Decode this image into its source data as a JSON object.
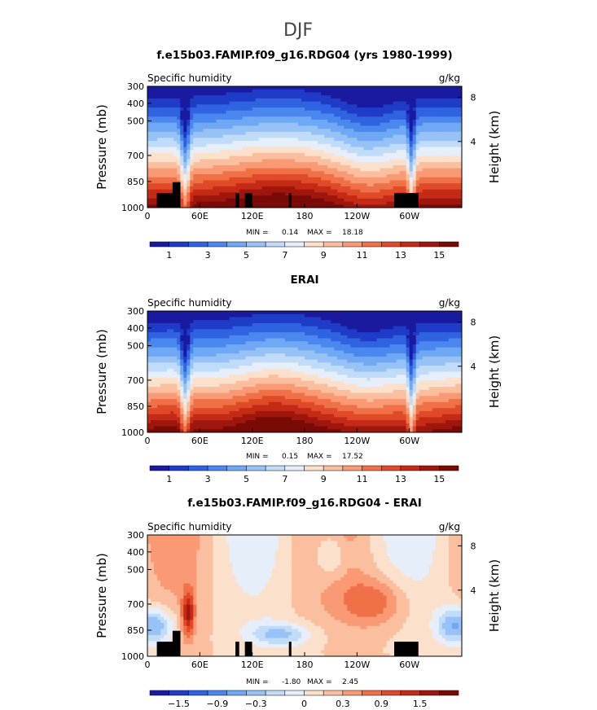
{
  "figure_title": "DJF",
  "chart_data": [
    {
      "type": "heatmap",
      "title": "f.e15b03.FAMIP.f09_g16.RDG04 (yrs 1980-1999)",
      "left_label": "Specific humidity",
      "right_label": "g/kg",
      "ylabel": "Pressure (mb)",
      "y2label": "Height (km)",
      "xticks": [
        "0",
        "60E",
        "120E",
        "180",
        "120W",
        "60W"
      ],
      "yticks": [
        "300",
        "400",
        "500",
        "700",
        "850",
        "1000"
      ],
      "y2ticks": [
        "8",
        "4"
      ],
      "ylim": [
        1000,
        300
      ],
      "stats": {
        "min_label": "MIN =",
        "min": "0.14",
        "max_label": "MAX =",
        "max": "18.18"
      },
      "colorbar_labels": [
        "1",
        "3",
        "5",
        "7",
        "9",
        "11",
        "13",
        "15"
      ],
      "colorbar_colors": [
        "#1a1aa0",
        "#1f3cc8",
        "#2f63e0",
        "#4a88f0",
        "#6fa8f5",
        "#97c2f8",
        "#c0dcf9",
        "#e6eefa",
        "#fbe0cc",
        "#fbbf9f",
        "#f99a74",
        "#f07048",
        "#e04a28",
        "#c52a16",
        "#9e160c",
        "#7a0a05"
      ],
      "terrain": true
    },
    {
      "type": "heatmap",
      "title": "ERAI",
      "left_label": "Specific humidity",
      "right_label": "g/kg",
      "ylabel": "Pressure (mb)",
      "y2label": "Height (km)",
      "xticks": [
        "0",
        "60E",
        "120E",
        "180",
        "120W",
        "60W"
      ],
      "yticks": [
        "300",
        "400",
        "500",
        "700",
        "850",
        "1000"
      ],
      "y2ticks": [
        "8",
        "4"
      ],
      "ylim": [
        1000,
        300
      ],
      "stats": {
        "min_label": "MIN =",
        "min": "0.15",
        "max_label": "MAX =",
        "max": "17.52"
      },
      "colorbar_labels": [
        "1",
        "3",
        "5",
        "7",
        "9",
        "11",
        "13",
        "15"
      ],
      "colorbar_colors": [
        "#1a1aa0",
        "#1f3cc8",
        "#2f63e0",
        "#4a88f0",
        "#6fa8f5",
        "#97c2f8",
        "#c0dcf9",
        "#e6eefa",
        "#fbe0cc",
        "#fbbf9f",
        "#f99a74",
        "#f07048",
        "#e04a28",
        "#c52a16",
        "#9e160c",
        "#7a0a05"
      ],
      "terrain": false
    },
    {
      "type": "heatmap",
      "title": "f.e15b03.FAMIP.f09_g16.RDG04 - ERAI",
      "left_label": "Specific humidity",
      "right_label": "g/kg",
      "ylabel": "Pressure (mb)",
      "y2label": "Height (km)",
      "xticks": [
        "0",
        "60E",
        "120E",
        "180",
        "120W",
        "60W"
      ],
      "yticks": [
        "300",
        "400",
        "500",
        "700",
        "850",
        "1000"
      ],
      "y2ticks": [
        "8",
        "4"
      ],
      "ylim": [
        1000,
        300
      ],
      "stats": {
        "min_label": "MIN =",
        "min": "-1.80",
        "max_label": "MAX =",
        "max": "2.45"
      },
      "colorbar_labels": [
        "−1.5",
        "−0.9",
        "−0.3",
        "0",
        "0.3",
        "0.9",
        "1.5"
      ],
      "colorbar_colors": [
        "#1a1aa0",
        "#1f3cc8",
        "#2f63e0",
        "#4a88f0",
        "#6fa8f5",
        "#97c2f8",
        "#c0dcf9",
        "#e6eefa",
        "#fbe0cc",
        "#fbbf9f",
        "#f99a74",
        "#f07048",
        "#e04a28",
        "#c52a16",
        "#9e160c",
        "#7a0a05"
      ],
      "terrain": true
    }
  ]
}
